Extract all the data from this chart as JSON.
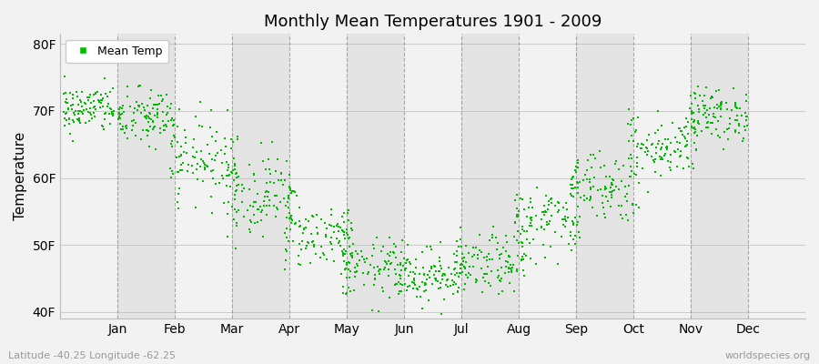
{
  "title": "Monthly Mean Temperatures 1901 - 2009",
  "ylabel": "Temperature",
  "xlabel_latitude": "Latitude -40.25 Longitude -62.25",
  "watermark": "worldspecies.org",
  "yticks": [
    40,
    50,
    60,
    70,
    80
  ],
  "ytick_labels": [
    "40F",
    "50F",
    "60F",
    "70F",
    "80F"
  ],
  "ylim": [
    39.0,
    81.5
  ],
  "months": [
    "Jan",
    "Feb",
    "Mar",
    "Apr",
    "May",
    "Jun",
    "Jul",
    "Aug",
    "Sep",
    "Oct",
    "Nov",
    "Dec"
  ],
  "dot_color": "#00bb00",
  "dot_size": 3,
  "background_color": "#f2f2f2",
  "plot_bg_alt1": "#f2f2f2",
  "plot_bg_alt2": "#e4e4e4",
  "grid_color": "#888888",
  "monthly_means": [
    70.3,
    69.0,
    63.0,
    57.5,
    51.5,
    46.5,
    45.5,
    47.0,
    53.5,
    59.0,
    65.0,
    69.5
  ],
  "monthly_std": [
    1.8,
    2.2,
    3.0,
    3.0,
    2.5,
    2.2,
    2.0,
    2.2,
    2.8,
    2.8,
    2.5,
    2.0
  ],
  "monthly_spread": [
    0.9,
    1.0,
    1.2,
    1.2,
    1.2,
    1.2,
    1.2,
    1.2,
    1.2,
    1.2,
    1.2,
    1.0
  ],
  "n_points": 109,
  "seed": 42,
  "title_fontsize": 13,
  "axis_fontsize": 10,
  "ylabel_fontsize": 11,
  "legend_fontsize": 9
}
